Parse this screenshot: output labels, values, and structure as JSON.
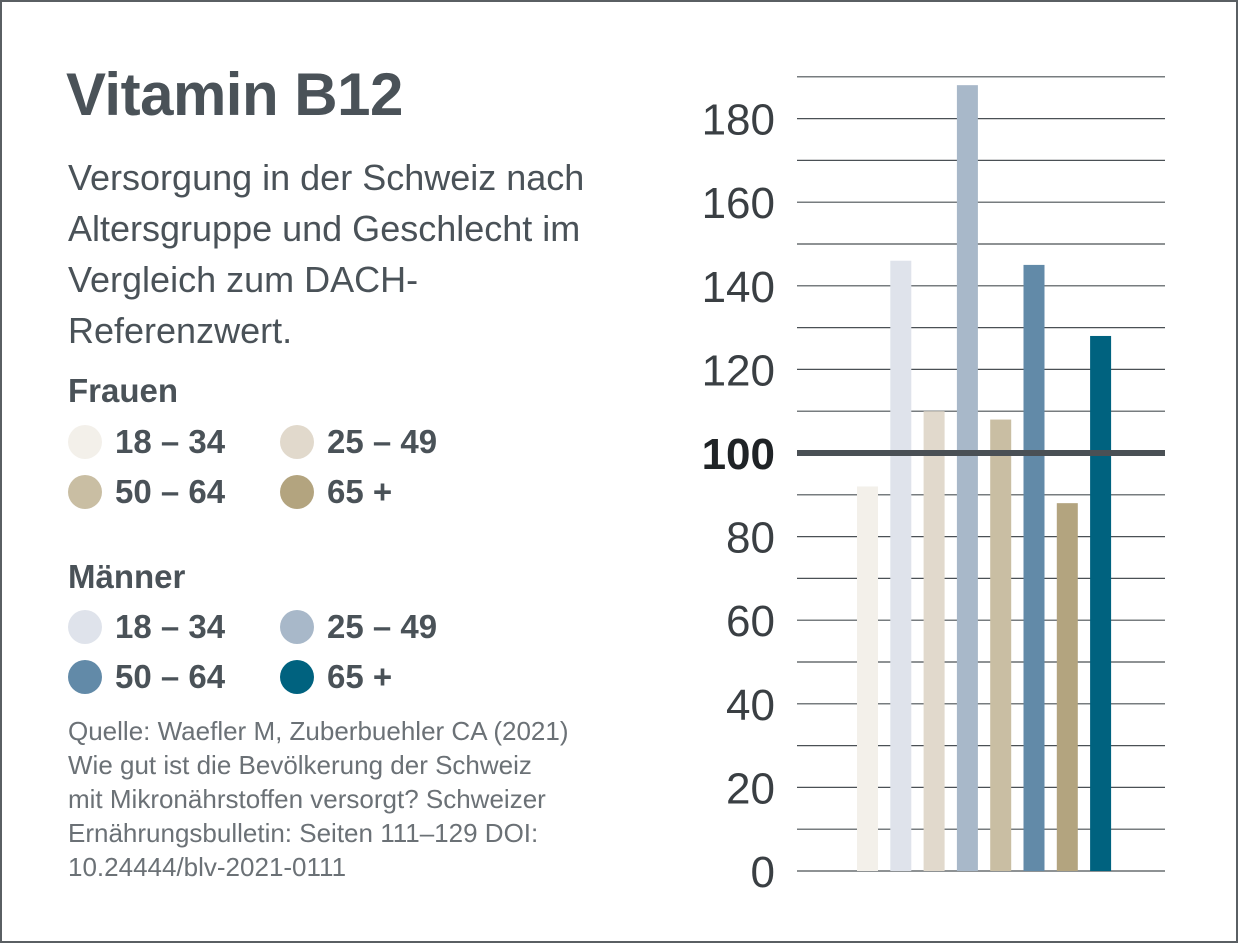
{
  "title": "Vitamin B12",
  "subtitle": "Versorgung in der Schweiz nach Altersgruppe und Geschlecht im Vergleich zum DACH-Referenzwert.",
  "legend": {
    "frauen": {
      "label": "Frauen",
      "items": [
        {
          "label": "18 – 34",
          "color": "#f3f0ea"
        },
        {
          "label": "25 – 49",
          "color": "#e1d9cc"
        },
        {
          "label": "50 – 64",
          "color": "#c9bea3"
        },
        {
          "label": "65 +",
          "color": "#b3a47f"
        }
      ]
    },
    "maenner": {
      "label": "Männer",
      "items": [
        {
          "label": "18 – 34",
          "color": "#dfe3eb"
        },
        {
          "label": "25 – 49",
          "color": "#a8b8c9"
        },
        {
          "label": "50 – 64",
          "color": "#628aa8"
        },
        {
          "label": "65 +",
          "color": "#00627f"
        }
      ]
    }
  },
  "source": [
    "Quelle: Waefler M, Zuberbuehler CA (2021)",
    "Wie gut ist die Bevölkerung der Schweiz",
    "mit Mikronährstoffen versorgt? Schweizer",
    "Ernährungsbulletin: Seiten 111–129 DOI:",
    "10.24444/blv-2021-0111"
  ],
  "chart_data": {
    "type": "bar",
    "title": "",
    "xlabel": "",
    "ylabel": "",
    "ylim": [
      0,
      190
    ],
    "yticks": [
      0,
      20,
      40,
      60,
      80,
      100,
      120,
      140,
      160,
      180
    ],
    "reference_line": 100,
    "grid": true,
    "series": [
      {
        "name": "Frauen 18 – 34",
        "value": 92,
        "color": "#f3f0ea"
      },
      {
        "name": "Männer 18 – 34",
        "value": 146,
        "color": "#dfe3eb"
      },
      {
        "name": "Frauen 25 – 49",
        "value": 110,
        "color": "#e1d9cc"
      },
      {
        "name": "Männer 25 – 49",
        "value": 188,
        "color": "#a8b8c9"
      },
      {
        "name": "Frauen 50 – 64",
        "value": 108,
        "color": "#c9bea3"
      },
      {
        "name": "Männer 50 – 64",
        "value": 145,
        "color": "#628aa8"
      },
      {
        "name": "Frauen 65 +",
        "value": 88,
        "color": "#b3a47f"
      },
      {
        "name": "Männer 65 +",
        "value": 128,
        "color": "#00627f"
      }
    ]
  }
}
